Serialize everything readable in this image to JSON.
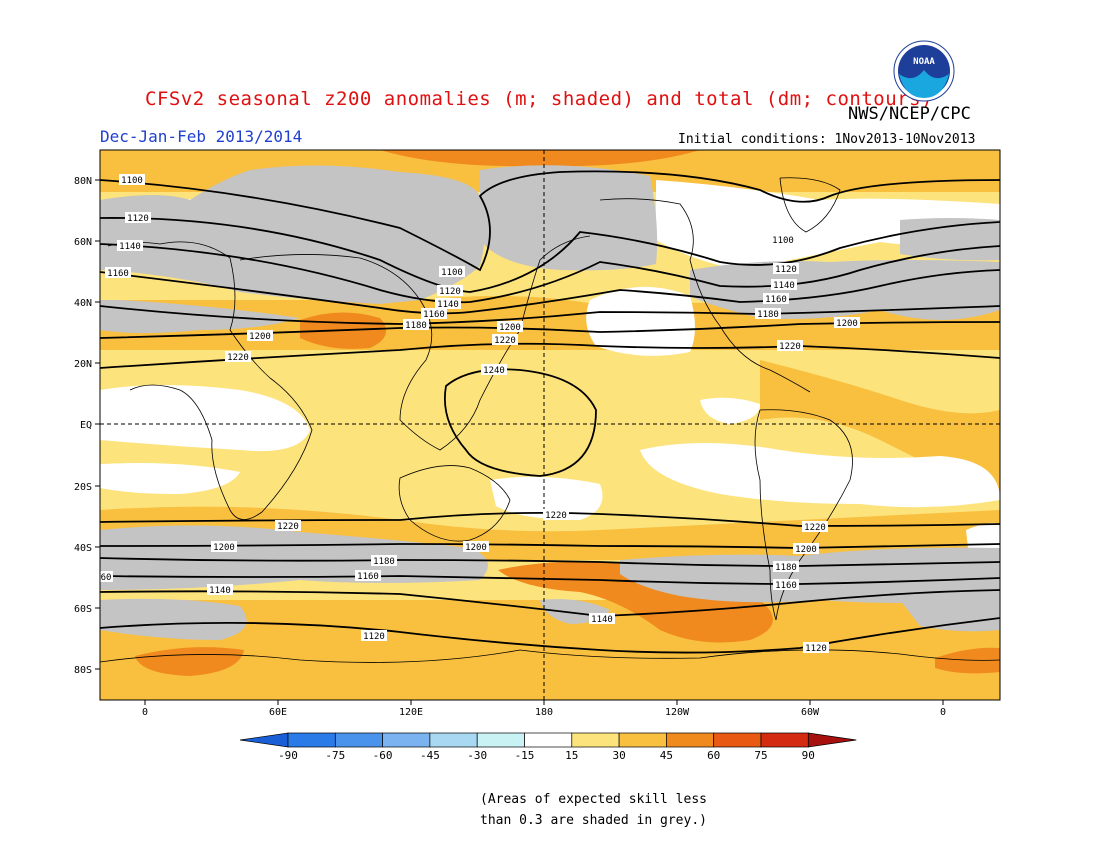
{
  "header": {
    "title": "CFSv2 seasonal z200 anomalies (m; shaded) and total (dm; contours)",
    "agency": "NWS/NCEP/CPC",
    "period": "Dec-Jan-Feb 2013/2014",
    "initial_conditions": "Initial conditions: 1Nov2013-10Nov2013",
    "logo_text": "NOAA"
  },
  "map": {
    "lat_labels": [
      "80N",
      "60N",
      "40N",
      "20N",
      "EQ",
      "20S",
      "40S",
      "60S",
      "80S"
    ],
    "lon_labels": [
      "0",
      "60E",
      "120E",
      "180",
      "120W",
      "60W",
      "0"
    ],
    "contour_labels": [
      {
        "text": "1100"
      },
      {
        "text": "1120"
      },
      {
        "text": "1140"
      },
      {
        "text": "1160"
      },
      {
        "text": "1100"
      },
      {
        "text": "1120"
      },
      {
        "text": "1140"
      },
      {
        "text": "1160"
      },
      {
        "text": "1180"
      },
      {
        "text": "1100"
      },
      {
        "text": "1120"
      },
      {
        "text": "1140"
      },
      {
        "text": "1160"
      },
      {
        "text": "1180"
      },
      {
        "text": "1200"
      },
      {
        "text": "1220"
      },
      {
        "text": "1200"
      },
      {
        "text": "1220"
      },
      {
        "text": "1200"
      },
      {
        "text": "1220"
      },
      {
        "text": "1240"
      },
      {
        "text": "1220"
      },
      {
        "text": "1220"
      },
      {
        "text": "1220"
      },
      {
        "text": "1200"
      },
      {
        "text": "1200"
      },
      {
        "text": "1200"
      },
      {
        "text": "1180"
      },
      {
        "text": "1180"
      },
      {
        "text": "1160"
      },
      {
        "text": "1160"
      },
      {
        "text": "60"
      },
      {
        "text": "1140"
      },
      {
        "text": "1140"
      },
      {
        "text": "1120"
      },
      {
        "text": "1120"
      }
    ]
  },
  "colorbar": {
    "ticks": [
      "-90",
      "-75",
      "-60",
      "-45",
      "-30",
      "-15",
      "15",
      "30",
      "45",
      "60",
      "75",
      "90"
    ],
    "colors": [
      "#1a5fd6",
      "#2a7ae8",
      "#4a93ec",
      "#7ab3f0",
      "#a8d8f2",
      "#c8f2f4",
      "#ffffff",
      "#fde37c",
      "#f9bf3f",
      "#f08a1e",
      "#e85a14",
      "#d42a10",
      "#a81010"
    ]
  },
  "footnote": {
    "line1": "(Areas of expected skill less",
    "line2": "than 0.3 are shaded in grey.)"
  },
  "colors": {
    "title": "#e01010",
    "period": "#2040d0",
    "grey_skill": "#c4c4c4",
    "positive_15_30": "#fde37c",
    "positive_30_45": "#f9bf3f",
    "positive_45_60": "#f08a1e",
    "positive_60_75": "#e85a14"
  }
}
